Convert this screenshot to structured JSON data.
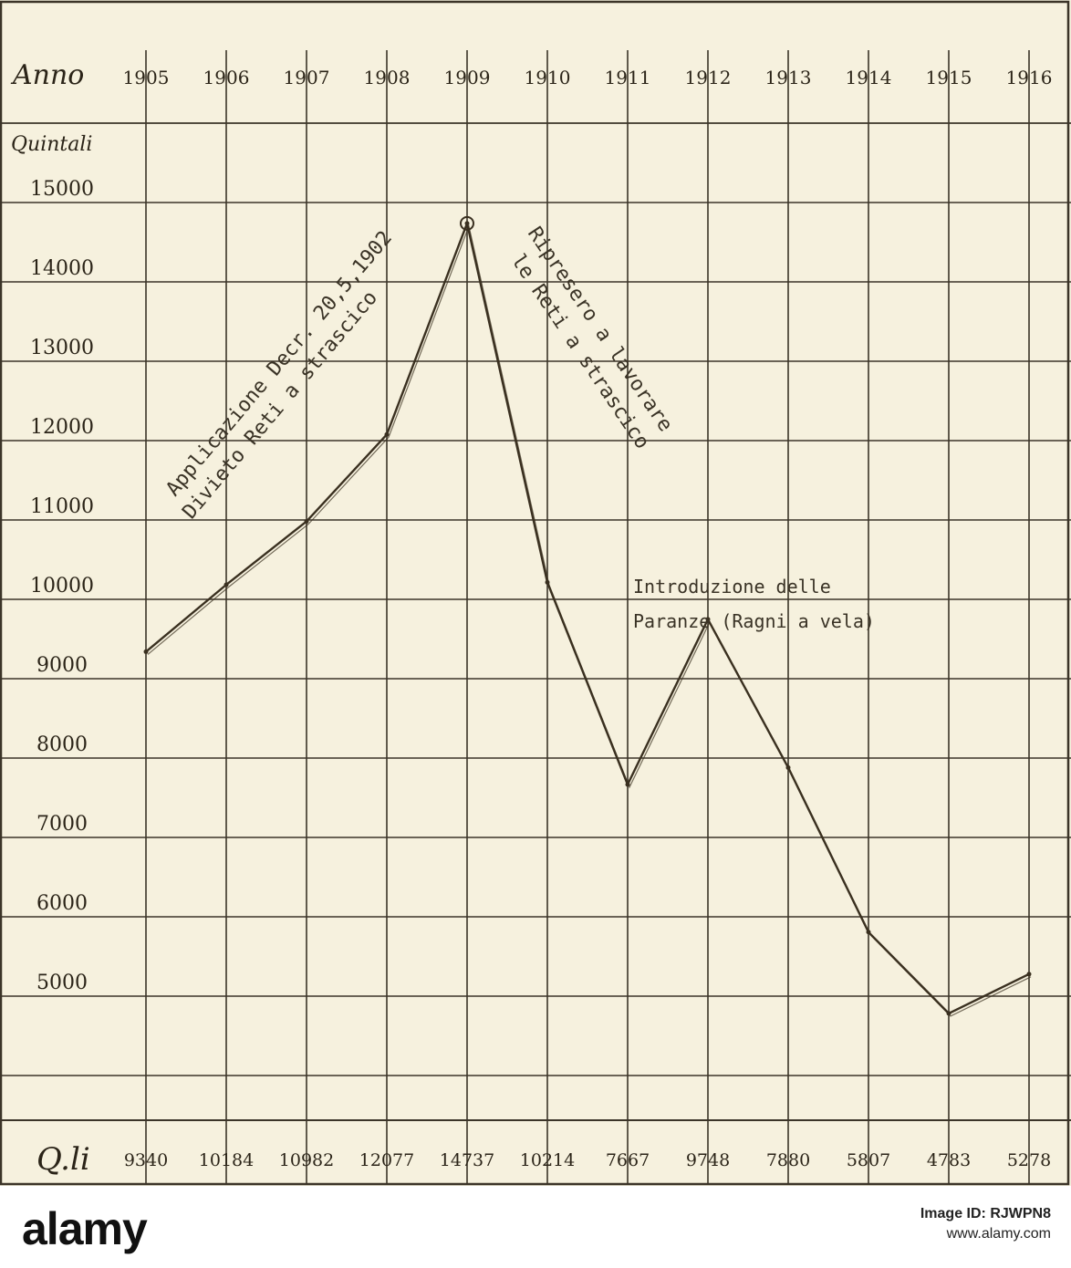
{
  "chart_data": {
    "type": "line",
    "x_header": "Anno",
    "y_header": "Quintali",
    "bottom_label": "Q.li",
    "x": [
      "1905",
      "1906",
      "1907",
      "1908",
      "1909",
      "1910",
      "1911",
      "1912",
      "1913",
      "1914",
      "1915",
      "1916"
    ],
    "values": [
      9340,
      10184,
      10982,
      12077,
      14737,
      10214,
      7667,
      9748,
      7880,
      5807,
      4783,
      5278
    ],
    "value_labels": [
      "9340",
      "10184",
      "10982",
      "12077",
      "14737",
      "10214",
      "7667",
      "9748",
      "7880",
      "5807",
      "4783",
      "5278"
    ],
    "y_ticks": [
      "15000",
      "14000",
      "13000",
      "12000",
      "11000",
      "10000",
      "9000",
      "8000",
      "7000",
      "6000",
      "5000"
    ],
    "y_tick_values": [
      15000,
      14000,
      13000,
      12000,
      11000,
      10000,
      9000,
      8000,
      7000,
      6000,
      5000
    ],
    "ylim": [
      4000,
      16500
    ],
    "grid": true,
    "line_color": "#3a3020",
    "annotations": [
      {
        "id": "ann-applicazione",
        "text": "Applicazione Decr. 20,5,1902"
      },
      {
        "id": "ann-divieto",
        "text": "Divieto Reti a strascico"
      },
      {
        "id": "ann-ripresero",
        "text": "Ripresero a lavorare"
      },
      {
        "id": "ann-le-reti",
        "text": "le Reti a strascico"
      },
      {
        "id": "ann-introduzione",
        "text": "Introduzione delle"
      },
      {
        "id": "ann-paranze",
        "text": "Paranze (Ragni a vela)"
      }
    ]
  },
  "footer": {
    "logo": "alamy",
    "image_id": "Image ID: RJWPN8",
    "site": "www.alamy.com"
  },
  "colors": {
    "paper": "#f6f1de",
    "ink": "#2b2418",
    "grid": "#3b3428"
  }
}
